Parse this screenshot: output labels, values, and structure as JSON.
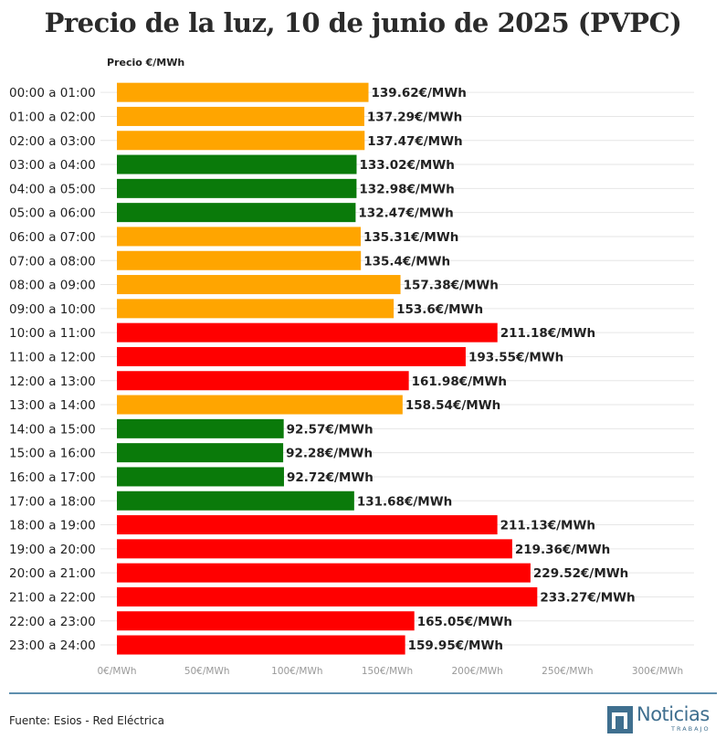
{
  "header": {
    "title": "Precio de la luz, 10 de junio de 2025 (PVPC)"
  },
  "chart_data": {
    "type": "bar",
    "orientation": "horizontal",
    "ylabel": "Precio €/MWh",
    "xlim": [
      0,
      300
    ],
    "x_ticks": [
      "0€/MWh",
      "50€/MWh",
      "100€/MWh",
      "150€/MWh",
      "200€/MWh",
      "250€/MWh",
      "300€/MWh"
    ],
    "grid": true,
    "categories": [
      "00:00 a 01:00",
      "01:00 a 02:00",
      "02:00 a 03:00",
      "03:00 a 04:00",
      "04:00 a 05:00",
      "05:00 a 06:00",
      "06:00 a 07:00",
      "07:00 a 08:00",
      "08:00 a 09:00",
      "09:00 a 10:00",
      "10:00 a 11:00",
      "11:00 a 12:00",
      "12:00 a 13:00",
      "13:00 a 14:00",
      "14:00 a 15:00",
      "15:00 a 16:00",
      "16:00 a 17:00",
      "17:00 a 18:00",
      "18:00 a 19:00",
      "19:00 a 20:00",
      "20:00 a 21:00",
      "21:00 a 22:00",
      "22:00 a 23:00",
      "23:00 a 24:00"
    ],
    "values": [
      139.62,
      137.29,
      137.47,
      133.02,
      132.98,
      132.47,
      135.31,
      135.4,
      157.38,
      153.6,
      211.18,
      193.55,
      161.98,
      158.54,
      92.57,
      92.28,
      92.72,
      131.68,
      211.13,
      219.36,
      229.52,
      233.27,
      165.05,
      159.95
    ],
    "labels": [
      "139.62€/MWh",
      "137.29€/MWh",
      "137.47€/MWh",
      "133.02€/MWh",
      "132.98€/MWh",
      "132.47€/MWh",
      "135.31€/MWh",
      "135.4€/MWh",
      "157.38€/MWh",
      "153.6€/MWh",
      "211.18€/MWh",
      "193.55€/MWh",
      "161.98€/MWh",
      "158.54€/MWh",
      "92.57€/MWh",
      "92.28€/MWh",
      "92.72€/MWh",
      "131.68€/MWh",
      "211.13€/MWh",
      "219.36€/MWh",
      "229.52€/MWh",
      "233.27€/MWh",
      "165.05€/MWh",
      "159.95€/MWh"
    ],
    "bar_colors": [
      "#ffa500",
      "#ffa500",
      "#ffa500",
      "#0a7a0a",
      "#0a7a0a",
      "#0a7a0a",
      "#ffa500",
      "#ffa500",
      "#ffa500",
      "#ffa500",
      "#ff0000",
      "#ff0000",
      "#ff0000",
      "#ffa500",
      "#0a7a0a",
      "#0a7a0a",
      "#0a7a0a",
      "#0a7a0a",
      "#ff0000",
      "#ff0000",
      "#ff0000",
      "#ff0000",
      "#ff0000",
      "#ff0000"
    ]
  },
  "footer": {
    "source": "Fuente: Esios - Red Eléctrica",
    "logo_name": "Noticias",
    "logo_sub": "TRABAJO"
  }
}
